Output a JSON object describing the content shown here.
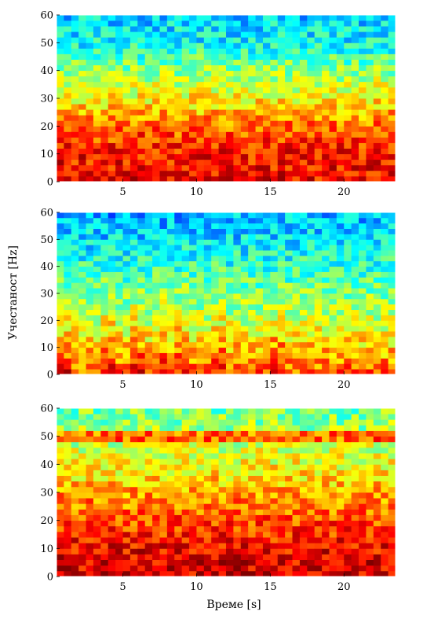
{
  "figure": {
    "xlabel": "Време [s]",
    "ylabel": "Учестаност [Hz]"
  },
  "chart_data": [
    {
      "type": "heatmap",
      "title": "",
      "xlabel": "",
      "ylabel": "",
      "xlim": [
        0.5,
        23.5
      ],
      "ylim": [
        0,
        60
      ],
      "xticks": [
        5,
        10,
        15,
        20
      ],
      "yticks": [
        0,
        10,
        20,
        30,
        40,
        50,
        60
      ],
      "time_bins": 46,
      "freq_bins": 30,
      "colormap": "jet",
      "color_profile": [
        {
          "freq": 0,
          "level": 0.88
        },
        {
          "freq": 10,
          "level": 0.86
        },
        {
          "freq": 20,
          "level": 0.78
        },
        {
          "freq": 30,
          "level": 0.63
        },
        {
          "freq": 40,
          "level": 0.52
        },
        {
          "freq": 50,
          "level": 0.38
        },
        {
          "freq": 60,
          "level": 0.33
        }
      ]
    },
    {
      "type": "heatmap",
      "title": "",
      "xlabel": "",
      "ylabel": "",
      "xlim": [
        0.5,
        23.5
      ],
      "ylim": [
        0,
        60
      ],
      "xticks": [
        5,
        10,
        15,
        20
      ],
      "yticks": [
        0,
        10,
        20,
        30,
        40,
        50,
        60
      ],
      "time_bins": 46,
      "freq_bins": 30,
      "colormap": "jet",
      "color_profile": [
        {
          "freq": 0,
          "level": 0.8
        },
        {
          "freq": 10,
          "level": 0.68
        },
        {
          "freq": 20,
          "level": 0.57
        },
        {
          "freq": 30,
          "level": 0.5
        },
        {
          "freq": 40,
          "level": 0.42
        },
        {
          "freq": 50,
          "level": 0.35
        },
        {
          "freq": 60,
          "level": 0.3
        }
      ],
      "bursts_at_time": [
        1,
        4,
        6,
        7.5,
        9,
        11.5,
        15.5
      ]
    },
    {
      "type": "heatmap",
      "title": "",
      "xlabel": "",
      "ylabel": "",
      "xlim": [
        0.5,
        23.5
      ],
      "ylim": [
        0,
        60
      ],
      "xticks": [
        5,
        10,
        15,
        20
      ],
      "yticks": [
        0,
        10,
        20,
        30,
        40,
        50,
        60
      ],
      "time_bins": 46,
      "freq_bins": 30,
      "colormap": "jet",
      "color_profile": [
        {
          "freq": 0,
          "level": 0.92
        },
        {
          "freq": 10,
          "level": 0.88
        },
        {
          "freq": 20,
          "level": 0.8
        },
        {
          "freq": 30,
          "level": 0.72
        },
        {
          "freq": 40,
          "level": 0.62
        },
        {
          "freq": 50,
          "level": 0.55
        },
        {
          "freq": 60,
          "level": 0.48
        }
      ],
      "line_at_freq": 50
    }
  ]
}
